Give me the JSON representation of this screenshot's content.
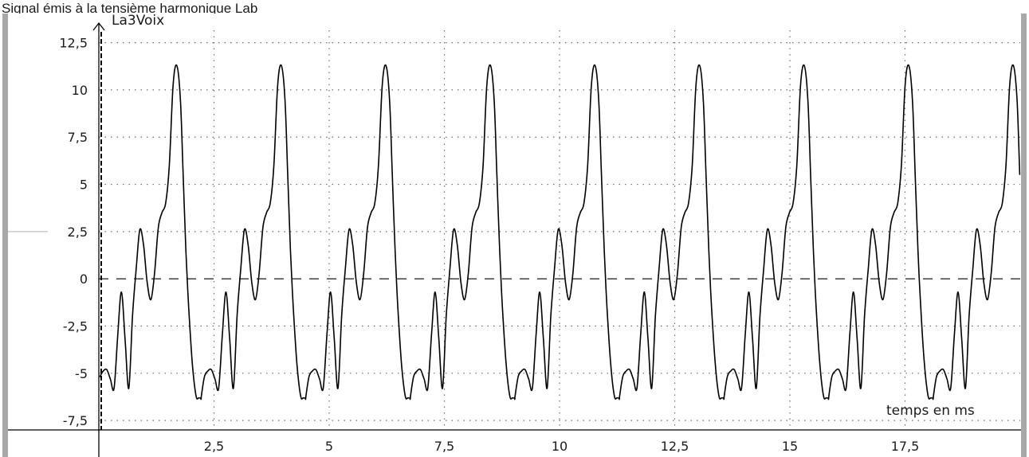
{
  "heading": "Signal émis à la tensième harmonique Lab",
  "chart_data": {
    "type": "line",
    "ylabel": "La3Voix",
    "xlabel": "temps en ms",
    "xlim": [
      0,
      20
    ],
    "ylim": [
      -8,
      14
    ],
    "x_ticks": [
      2.5,
      5,
      7.5,
      10,
      12.5,
      15,
      17.5
    ],
    "x_tick_labels": [
      "2,5",
      "5",
      "7,5",
      "10",
      "12,5",
      "15",
      "17,5"
    ],
    "y_ticks": [
      -7.5,
      -5,
      -2.5,
      0,
      2.5,
      5,
      7.5,
      10,
      12.5
    ],
    "y_tick_labels": [
      "-7,5",
      "-5",
      "-2,5",
      "0",
      "2,5",
      "5",
      "7,5",
      "10",
      "12,5"
    ],
    "grid": true,
    "period_ms": 2.27,
    "series": [
      {
        "name": "",
        "one_period": {
          "t": [
            0,
            0.07,
            0.14,
            0.22,
            0.3,
            0.38,
            0.46,
            0.54,
            0.62,
            0.7,
            0.78,
            0.86,
            0.94,
            1.02,
            1.1,
            1.18,
            1.26,
            1.34,
            1.42,
            1.5,
            1.58,
            1.66,
            1.74,
            1.82,
            1.88,
            1.94,
            2.0,
            2.08,
            2.16,
            2.22,
            2.27
          ],
          "y": [
            -6.3,
            -5.2,
            -4.9,
            -4.8,
            -5.3,
            -5.8,
            -3.0,
            -0.7,
            -3.2,
            -5.8,
            -2.0,
            0.5,
            2.6,
            1.8,
            -0.2,
            -1.1,
            0.3,
            2.7,
            3.5,
            4.0,
            6.0,
            10.2,
            11.3,
            9.5,
            5.5,
            1.5,
            -1.5,
            -4.5,
            -6.2,
            -6.3,
            -6.3
          ]
        }
      }
    ]
  },
  "colors": {
    "line": "#000000",
    "grid": "#6b6b6b",
    "frame": "#a8a8a8",
    "axis": "#000000"
  }
}
